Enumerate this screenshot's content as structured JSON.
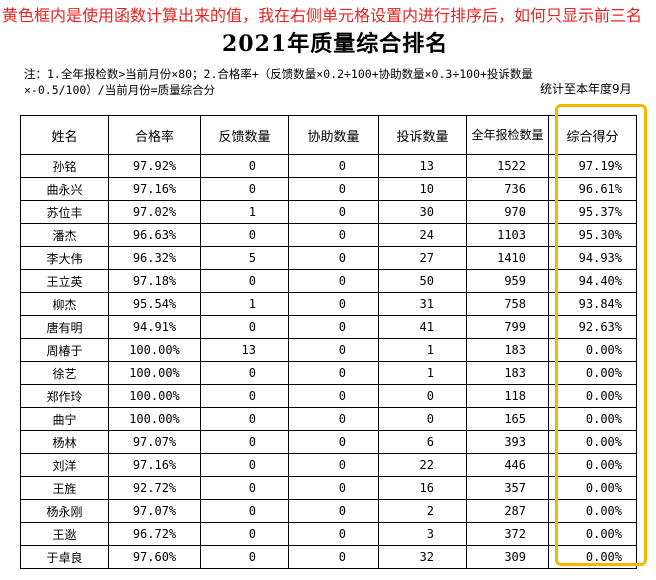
{
  "question": "黄色框内是使用函数计算出来的值，我在右侧单元格设置内进行排序后，如何只显示前三名",
  "title": "2021年质量综合排名",
  "note": "注：1.全年报检数>当前月份×80；2.合格率+（反馈数量×0.2÷100+协助数量×0.3÷100+投诉数量×-0.5/100）/当前月份=质量综合分",
  "stat_range": "统计至本年度9月",
  "highlight_color": "#f5b800",
  "question_color": "#e8231f",
  "columns": [
    "姓名",
    "合格率",
    "反馈数量",
    "协助数量",
    "投诉数量",
    "全年报检数量",
    "综合得分"
  ],
  "rows": [
    [
      "孙铭",
      "97.92%",
      "0",
      "0",
      "13",
      "1522",
      "97.19%"
    ],
    [
      "曲永兴",
      "97.16%",
      "0",
      "0",
      "10",
      "736",
      "96.61%"
    ],
    [
      "苏位丰",
      "97.02%",
      "1",
      "0",
      "30",
      "970",
      "95.37%"
    ],
    [
      "潘杰",
      "96.63%",
      "0",
      "0",
      "24",
      "1103",
      "95.30%"
    ],
    [
      "李大伟",
      "96.32%",
      "5",
      "0",
      "27",
      "1410",
      "94.93%"
    ],
    [
      "王立英",
      "97.18%",
      "0",
      "0",
      "50",
      "959",
      "94.40%"
    ],
    [
      "柳杰",
      "95.54%",
      "1",
      "0",
      "31",
      "758",
      "93.84%"
    ],
    [
      "唐有明",
      "94.91%",
      "0",
      "0",
      "41",
      "799",
      "92.63%"
    ],
    [
      "周椿于",
      "100.00%",
      "13",
      "0",
      "1",
      "183",
      "0.00%"
    ],
    [
      "徐艺",
      "100.00%",
      "0",
      "0",
      "1",
      "183",
      "0.00%"
    ],
    [
      "郑作玲",
      "100.00%",
      "0",
      "0",
      "0",
      "118",
      "0.00%"
    ],
    [
      "曲宁",
      "100.00%",
      "0",
      "0",
      "0",
      "165",
      "0.00%"
    ],
    [
      "杨林",
      "97.07%",
      "0",
      "0",
      "6",
      "393",
      "0.00%"
    ],
    [
      "刘洋",
      "97.16%",
      "0",
      "0",
      "22",
      "446",
      "0.00%"
    ],
    [
      "王旌",
      "92.72%",
      "0",
      "0",
      "16",
      "357",
      "0.00%"
    ],
    [
      "杨永刚",
      "97.07%",
      "0",
      "0",
      "2",
      "287",
      "0.00%"
    ],
    [
      "王逖",
      "96.72%",
      "0",
      "0",
      "3",
      "372",
      "0.00%"
    ],
    [
      "于卓良",
      "97.60%",
      "0",
      "0",
      "32",
      "309",
      "0.00%"
    ]
  ]
}
